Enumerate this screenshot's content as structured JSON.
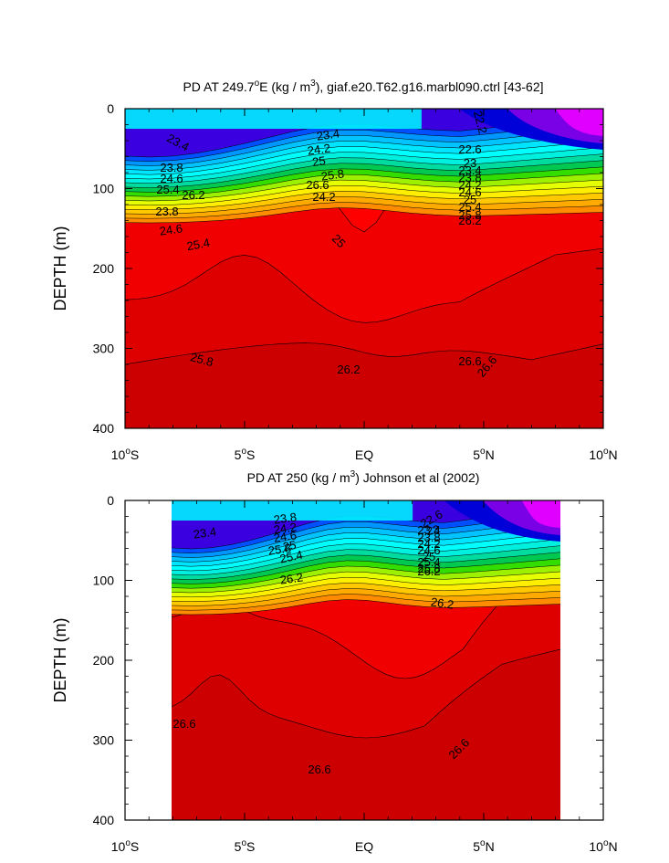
{
  "chart_data": [
    {
      "type": "contour",
      "title_main": "PD AT 249.7",
      "title_sup": "o",
      "title_rest": "E (kg / m",
      "title_sup2": "3",
      "title_end": "), giaf.e20.T62.g16.marbl090.ctrl [43-62]",
      "ylabel": "DEPTH (m)",
      "xlabel": "",
      "ylim": [
        400,
        0
      ],
      "xlim": [
        -10,
        10
      ],
      "y_ticks": [
        "0",
        "100",
        "200",
        "300",
        "400"
      ],
      "x_ticks": [
        {
          "num": "10",
          "sup": "o",
          "hem": "S"
        },
        {
          "num": "5",
          "sup": "o",
          "hem": "S"
        },
        {
          "num": "EQ",
          "sup": "",
          "hem": ""
        },
        {
          "num": "5",
          "sup": "o",
          "hem": "N"
        },
        {
          "num": "10",
          "sup": "o",
          "hem": "N"
        }
      ],
      "contour_labels": [
        "23.4",
        "23.4",
        "23.8",
        "24.2",
        "24.6",
        "25",
        "25.4",
        "25.8",
        "26.2",
        "26.6",
        "23.8",
        "24.2",
        "24.6",
        "25",
        "25.4",
        "25.8",
        "26.2",
        "26.6",
        "22.2",
        "22.6",
        "23",
        "23.4",
        "23.8",
        "24.2",
        "24.6",
        "25",
        "25.4",
        "25.8",
        "26.2",
        "26.6"
      ]
    },
    {
      "type": "contour",
      "title_main": "PD AT 250 (kg / m",
      "title_sup": "3",
      "title_end": ") Johnson et al (2002)",
      "ylabel": "DEPTH (m)",
      "xlabel": "",
      "ylim": [
        400,
        0
      ],
      "xlim": [
        -10,
        10
      ],
      "data_xlim": [
        -8.1,
        8.2
      ],
      "y_ticks": [
        "0",
        "100",
        "200",
        "300",
        "400"
      ],
      "x_ticks": [
        {
          "num": "10",
          "sup": "o",
          "hem": "S"
        },
        {
          "num": "5",
          "sup": "o",
          "hem": "S"
        },
        {
          "num": "EQ",
          "sup": "",
          "hem": ""
        },
        {
          "num": "5",
          "sup": "o",
          "hem": "N"
        },
        {
          "num": "10",
          "sup": "o",
          "hem": "N"
        }
      ],
      "contour_labels": [
        "23.4",
        "23.8",
        "24.2",
        "24.6",
        "25",
        "25.4",
        "25.8",
        "26.2",
        "26.6",
        "26.2",
        "26.6",
        "22.6",
        "23",
        "23.4",
        "23.8",
        "24.2",
        "24.6",
        "25",
        "25.4",
        "25.8",
        "26.2",
        "26.6"
      ]
    }
  ]
}
